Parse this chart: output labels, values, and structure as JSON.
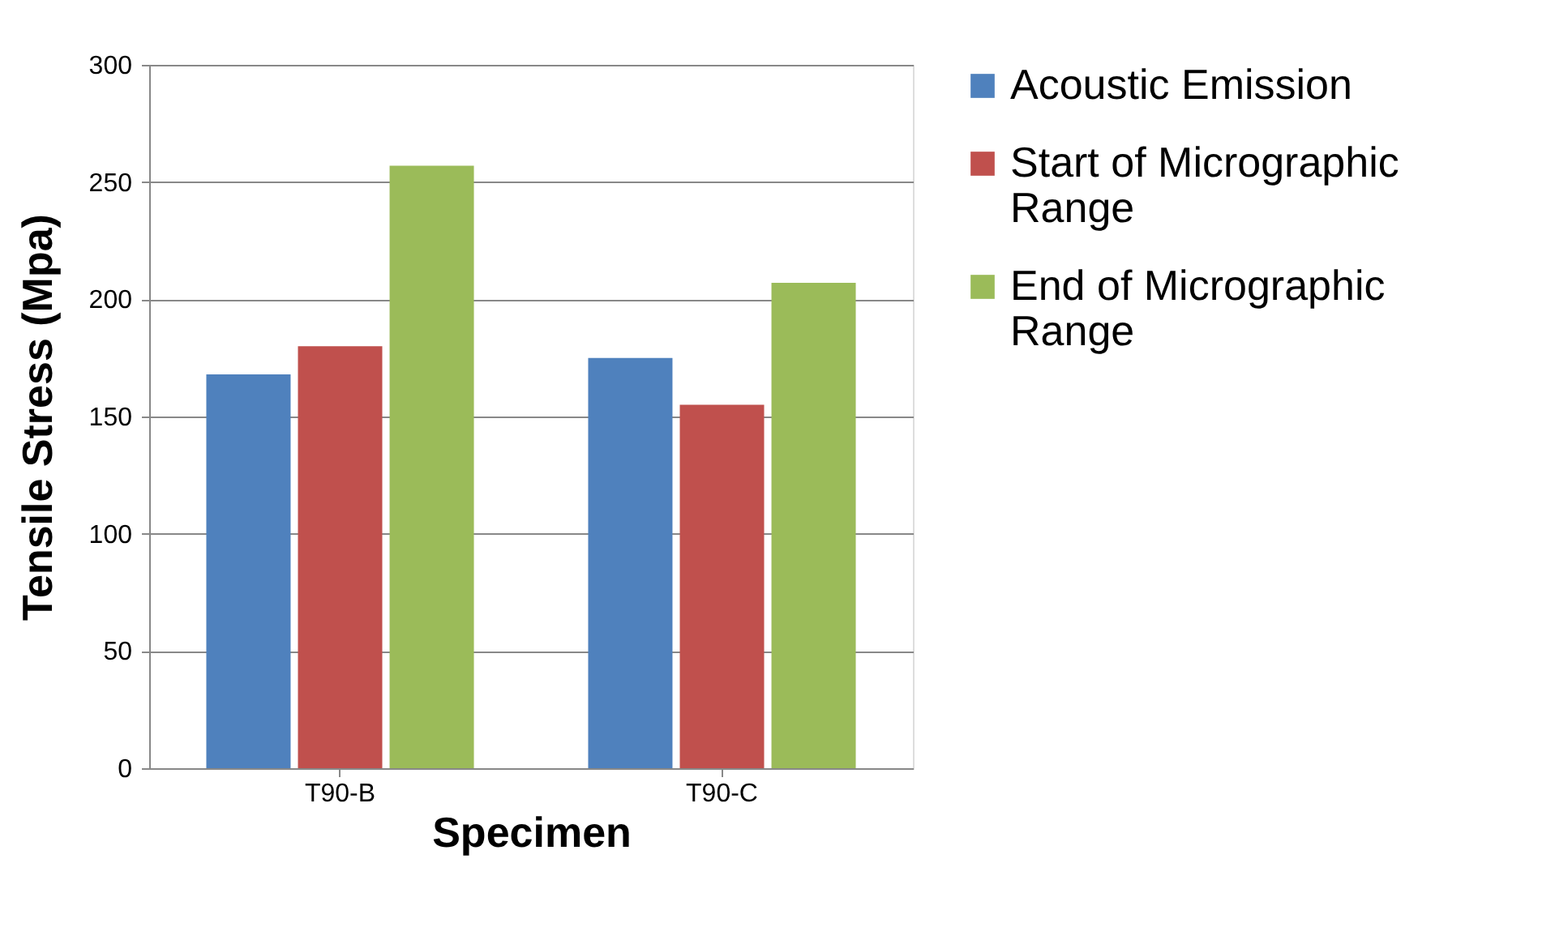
{
  "chart_data": {
    "type": "bar",
    "xlabel": "Specimen",
    "ylabel": "Tensile Stress (Mpa)",
    "categories": [
      "T90-B",
      "T90-C"
    ],
    "series": [
      {
        "name": "Acoustic Emission",
        "color": "#4f81bd",
        "values": [
          168,
          175
        ]
      },
      {
        "name": "Start of Micrographic Range",
        "color": "#c0504d",
        "values": [
          180,
          155
        ]
      },
      {
        "name": "End of Micrographic Range",
        "color": "#9bbb59",
        "values": [
          257,
          207
        ]
      }
    ],
    "ylim": [
      0,
      300
    ],
    "yticks": [
      0,
      50,
      100,
      150,
      200,
      250,
      300
    ],
    "grid": "y",
    "legend": "right"
  }
}
